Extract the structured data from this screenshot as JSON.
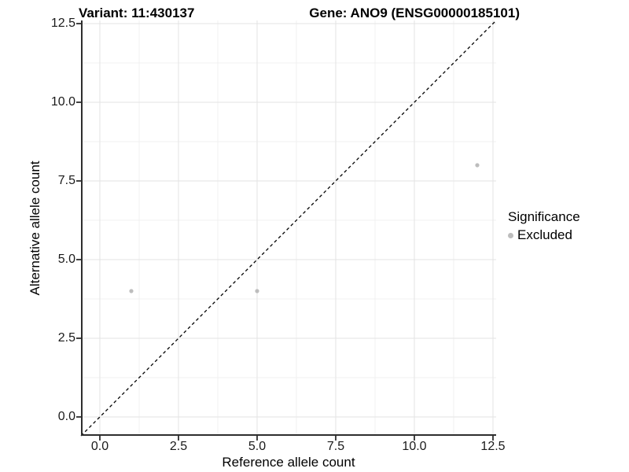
{
  "chart_data": {
    "type": "scatter",
    "title_left": "Variant: 11:430137",
    "title_right": "Gene: ANO9 (ENSG00000185101)",
    "xlabel": "Reference allele count",
    "ylabel": "Alternative allele count",
    "xlim": [
      -0.6,
      12.6
    ],
    "ylim": [
      -0.6,
      12.6
    ],
    "x_ticks": [
      0,
      2.5,
      5,
      7.5,
      10,
      12.5
    ],
    "y_ticks": [
      0,
      2.5,
      5,
      7.5,
      10,
      12.5
    ],
    "x_minor_ticks": [
      1.25,
      3.75,
      6.25,
      8.75,
      11.25
    ],
    "y_minor_ticks": [
      1.25,
      3.75,
      6.25,
      8.75,
      11.25
    ],
    "grid": "major+minor",
    "series": [
      {
        "name": "Excluded",
        "color": "#bdbdbd",
        "point_radius": 2.6,
        "points": [
          [
            1,
            4
          ],
          [
            5,
            4
          ],
          [
            12,
            8
          ]
        ]
      }
    ],
    "identity_line": {
      "equation": "y=x",
      "style": "dashed",
      "color": "#000000"
    },
    "legend": {
      "position": "right",
      "title": "Significance",
      "items": [
        {
          "label": "Excluded",
          "color": "#bdbdbd"
        }
      ]
    },
    "colors": {
      "background": "#ffffff",
      "grid_major": "#e3e3e3",
      "grid_minor": "#f1f1f1",
      "axis": "#2e2e2e",
      "text": "#000000",
      "point": "#bdbdbd"
    }
  }
}
